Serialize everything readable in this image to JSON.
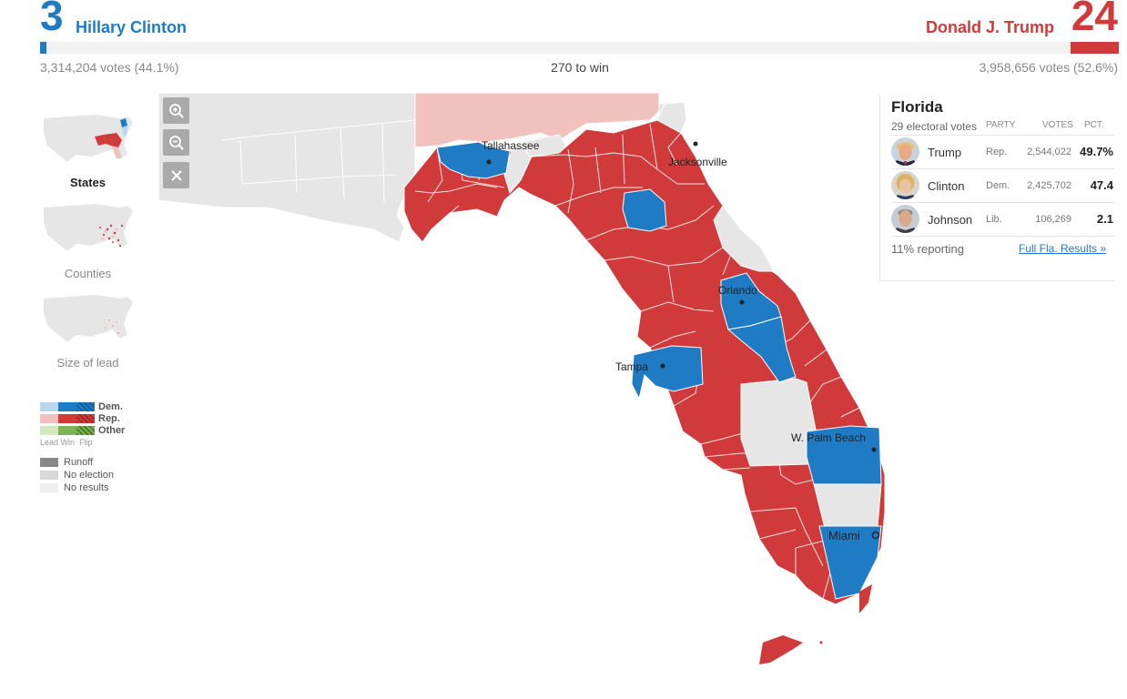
{
  "header": {
    "dem": {
      "electoral": "3",
      "name": "Hillary Clinton",
      "votes": "3,314,204 votes (44.1%)",
      "color": "#1f7cc4",
      "bar_fraction": 0.0056
    },
    "rep": {
      "electoral": "24",
      "name": "Donald J. Trump",
      "votes": "3,958,656 votes (52.6%)",
      "color": "#d03a3a",
      "bar_fraction": 0.0446
    },
    "center": "270 to win"
  },
  "views": [
    {
      "label": "States",
      "active": true,
      "icon": "us-states-map-icon"
    },
    {
      "label": "Counties",
      "active": false,
      "icon": "us-counties-map-icon"
    },
    {
      "label": "Size of lead",
      "active": false,
      "icon": "us-size-of-lead-map-icon"
    }
  ],
  "zoom_controls": [
    {
      "name": "zoom-in-button",
      "icon": "zoom-in-icon"
    },
    {
      "name": "zoom-out-button",
      "icon": "zoom-out-icon"
    },
    {
      "name": "reset-button",
      "icon": "close-icon"
    }
  ],
  "legend": {
    "rows": [
      {
        "label": "Dem.",
        "colors": [
          "#b8d6ee",
          "#1f7cc4",
          "#1a5d94"
        ]
      },
      {
        "label": "Rep.",
        "colors": [
          "#f1c1bd",
          "#d03a3a",
          "#9e2a2a"
        ]
      },
      {
        "label": "Other",
        "colors": [
          "#d4e8bf",
          "#7fb05a",
          "#4e7a2f"
        ]
      }
    ],
    "sub": [
      "Lead",
      "Win",
      "Flip"
    ],
    "extra": [
      {
        "label": "Runoff",
        "color": "#888888"
      },
      {
        "label": "No election",
        "color": "#d9d9d9"
      },
      {
        "label": "No results",
        "color": "#eeeeee"
      }
    ]
  },
  "map": {
    "cities": [
      {
        "name": "Tallahassee"
      },
      {
        "name": "Jacksonville"
      },
      {
        "name": "Orlando"
      },
      {
        "name": "Tampa"
      },
      {
        "name": "W. Palm Beach"
      },
      {
        "name": "Miami"
      }
    ]
  },
  "panel": {
    "state": "Florida",
    "electoral": "29 electoral votes",
    "headers": {
      "party": "PARTY",
      "votes": "VOTES",
      "pct": "PCT."
    },
    "candidates": [
      {
        "name": "Trump",
        "party": "Rep.",
        "votes": "2,544,022",
        "pct": "49.7%"
      },
      {
        "name": "Clinton",
        "party": "Dem.",
        "votes": "2,425,702",
        "pct": "47.4"
      },
      {
        "name": "Johnson",
        "party": "Lib.",
        "votes": "106,269",
        "pct": "2.1"
      }
    ],
    "reporting": "11% reporting",
    "link": "Full Fla. Results »"
  }
}
